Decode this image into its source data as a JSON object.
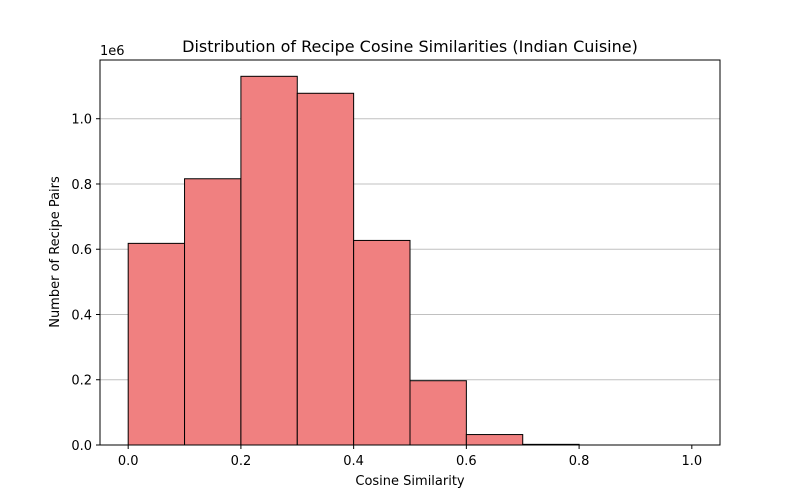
{
  "chart_data": {
    "type": "bar",
    "title": "Distribution of Recipe Cosine Similarities (Indian Cuisine)",
    "xlabel": "Cosine Similarity",
    "ylabel": "Number of Recipe Pairs",
    "y_offset_label": "1e6",
    "bins": [
      {
        "start": 0.0,
        "end": 0.1,
        "value": 0.618
      },
      {
        "start": 0.1,
        "end": 0.2,
        "value": 0.816
      },
      {
        "start": 0.2,
        "end": 0.3,
        "value": 1.13
      },
      {
        "start": 0.3,
        "end": 0.4,
        "value": 1.078
      },
      {
        "start": 0.4,
        "end": 0.5,
        "value": 0.627
      },
      {
        "start": 0.5,
        "end": 0.6,
        "value": 0.197
      },
      {
        "start": 0.6,
        "end": 0.7,
        "value": 0.032
      },
      {
        "start": 0.7,
        "end": 0.8,
        "value": 0.002
      },
      {
        "start": 0.8,
        "end": 0.9,
        "value": 0.0
      },
      {
        "start": 0.9,
        "end": 1.0,
        "value": 0.0
      }
    ],
    "x_ticks": [
      "0.0",
      "0.2",
      "0.4",
      "0.6",
      "0.8",
      "1.0"
    ],
    "y_ticks": [
      "0.0",
      "0.2",
      "0.4",
      "0.6",
      "0.8",
      "1.0"
    ],
    "xlim": [
      -0.05,
      1.05
    ],
    "ylim": [
      0,
      1.18
    ],
    "grid": "horizontal",
    "colors": {
      "bar_fill": "#f08080",
      "bar_edge": "#000000",
      "grid": "#c0c0c0"
    }
  }
}
